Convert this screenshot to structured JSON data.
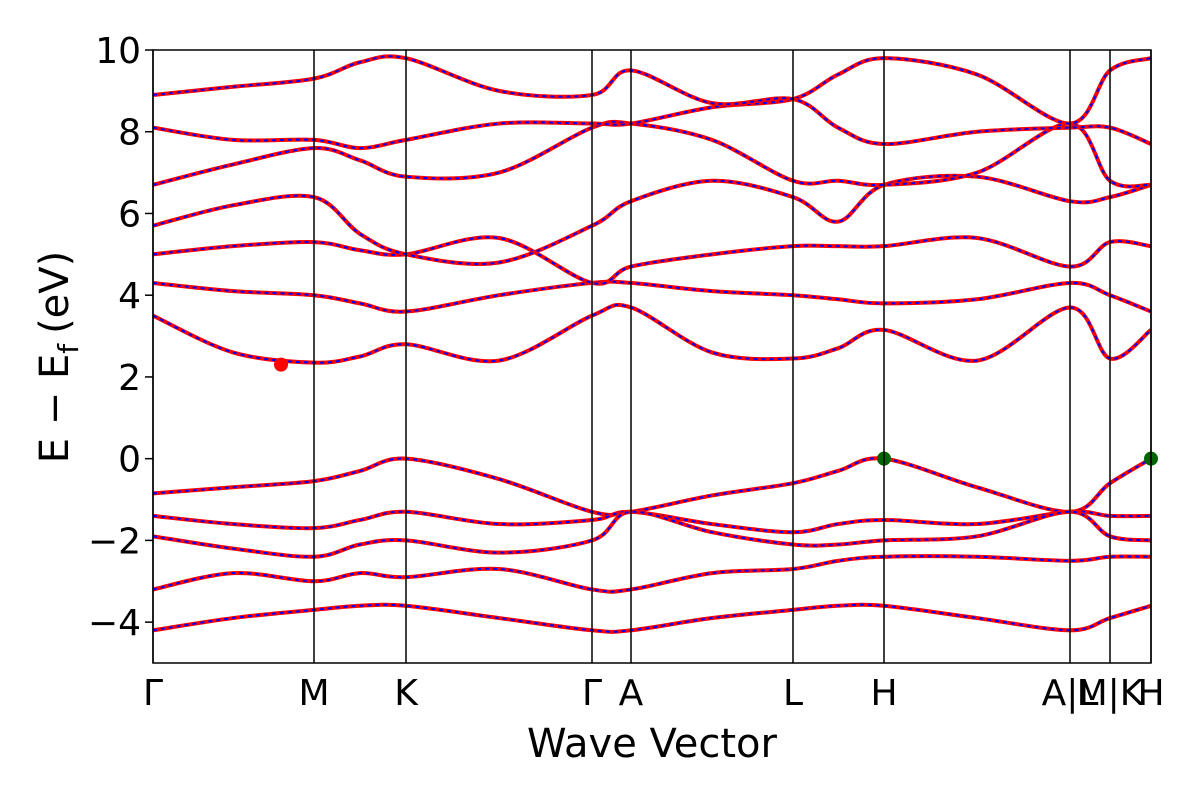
{
  "chart_data": {
    "type": "band_structure",
    "xlabel": "Wave Vector",
    "ylabel": {
      "main": "E − E",
      "sub": "f",
      "unit": "(eV)"
    },
    "xlim": [
      0,
      9.98
    ],
    "ylim": [
      -5,
      10
    ],
    "xticks": [
      {
        "value": 0,
        "label": "Γ"
      },
      {
        "value": 1.61,
        "label": "M"
      },
      {
        "value": 2.53,
        "label": "K"
      },
      {
        "value": 4.39,
        "label": "Γ"
      },
      {
        "value": 4.78,
        "label": "A"
      },
      {
        "value": 6.4,
        "label": "L"
      },
      {
        "value": 7.31,
        "label": "H"
      },
      {
        "value": 9.17,
        "label": "A|L"
      },
      {
        "value": 9.57,
        "label": "M|K"
      },
      {
        "value": 9.98,
        "label": "H"
      }
    ],
    "yticks": [
      {
        "value": -4,
        "label": "−4"
      },
      {
        "value": -2,
        "label": "−2"
      },
      0,
      2,
      4,
      6,
      8,
      10
    ],
    "color": "#ff0000",
    "dash_color": "#0000ff",
    "x": [
      0,
      0.8,
      1.61,
      2.07,
      2.53,
      3.46,
      4.39,
      4.78,
      5.59,
      6.4,
      6.85,
      7.31,
      8.24,
      9.17,
      9.57,
      9.98
    ],
    "series": [
      {
        "values": [
          -0.85,
          -0.7,
          -0.55,
          -0.3,
          0,
          -0.5,
          -1.3,
          -1.3,
          -0.9,
          -0.6,
          -0.3,
          0,
          -0.7,
          -1.3,
          -0.6,
          0
        ]
      },
      {
        "values": [
          -1.4,
          -1.6,
          -1.7,
          -1.5,
          -1.3,
          -1.6,
          -1.5,
          -1.3,
          -1.6,
          -1.8,
          -1.6,
          -1.5,
          -1.6,
          -1.3,
          -1.4,
          -1.4
        ]
      },
      {
        "values": [
          -1.9,
          -2.2,
          -2.4,
          -2.1,
          -2.0,
          -2.3,
          -2.0,
          -1.3,
          -1.8,
          -2.1,
          -2.1,
          -2.0,
          -1.9,
          -1.3,
          -1.9,
          -2.0
        ]
      },
      {
        "values": [
          -3.2,
          -2.8,
          -3.0,
          -2.8,
          -2.9,
          -2.7,
          -3.2,
          -3.2,
          -2.8,
          -2.7,
          -2.5,
          -2.4,
          -2.4,
          -2.5,
          -2.4,
          -2.4
        ]
      },
      {
        "values": [
          -4.2,
          -3.9,
          -3.7,
          -3.6,
          -3.6,
          -3.9,
          -4.2,
          -4.2,
          -3.9,
          -3.7,
          -3.6,
          -3.6,
          -3.9,
          -4.2,
          -3.9,
          -3.6
        ]
      },
      {
        "values": [
          3.5,
          2.6,
          2.35,
          2.5,
          2.8,
          2.4,
          3.5,
          3.7,
          2.6,
          2.45,
          2.7,
          3.15,
          2.4,
          3.7,
          2.45,
          3.15
        ]
      },
      {
        "values": [
          4.3,
          4.1,
          4.0,
          3.8,
          3.6,
          4.0,
          4.3,
          4.3,
          4.1,
          4.0,
          3.9,
          3.8,
          3.9,
          4.3,
          4.0,
          3.6
        ]
      },
      {
        "values": [
          5.0,
          5.2,
          5.3,
          5.1,
          5.0,
          5.4,
          4.3,
          4.7,
          5.0,
          5.2,
          5.2,
          5.2,
          5.4,
          4.7,
          5.3,
          5.2
        ]
      },
      {
        "values": [
          5.7,
          6.2,
          6.4,
          5.5,
          5.0,
          4.8,
          5.7,
          6.3,
          6.8,
          6.4,
          5.8,
          6.7,
          6.9,
          6.3,
          6.4,
          6.7
        ]
      },
      {
        "values": [
          6.7,
          7.2,
          7.6,
          7.3,
          6.9,
          7.0,
          8.1,
          8.2,
          7.8,
          6.8,
          6.8,
          6.7,
          7.0,
          8.2,
          6.8,
          6.7
        ]
      },
      {
        "values": [
          8.1,
          7.8,
          7.8,
          7.6,
          7.8,
          8.2,
          8.2,
          8.2,
          8.6,
          8.8,
          9.4,
          9.8,
          9.4,
          8.2,
          9.5,
          9.8
        ]
      },
      {
        "values": [
          8.9,
          9.1,
          9.3,
          9.7,
          9.8,
          9.0,
          8.9,
          9.5,
          8.7,
          8.8,
          8.1,
          7.7,
          8.0,
          8.1,
          8.1,
          7.7
        ]
      }
    ],
    "cbm": {
      "color": "#ff0000",
      "x": [
        1.28
      ],
      "values": [
        2.3
      ]
    },
    "vbm": {
      "color": "#006400",
      "x": [
        7.31,
        9.98
      ],
      "values": [
        0,
        0
      ]
    }
  }
}
